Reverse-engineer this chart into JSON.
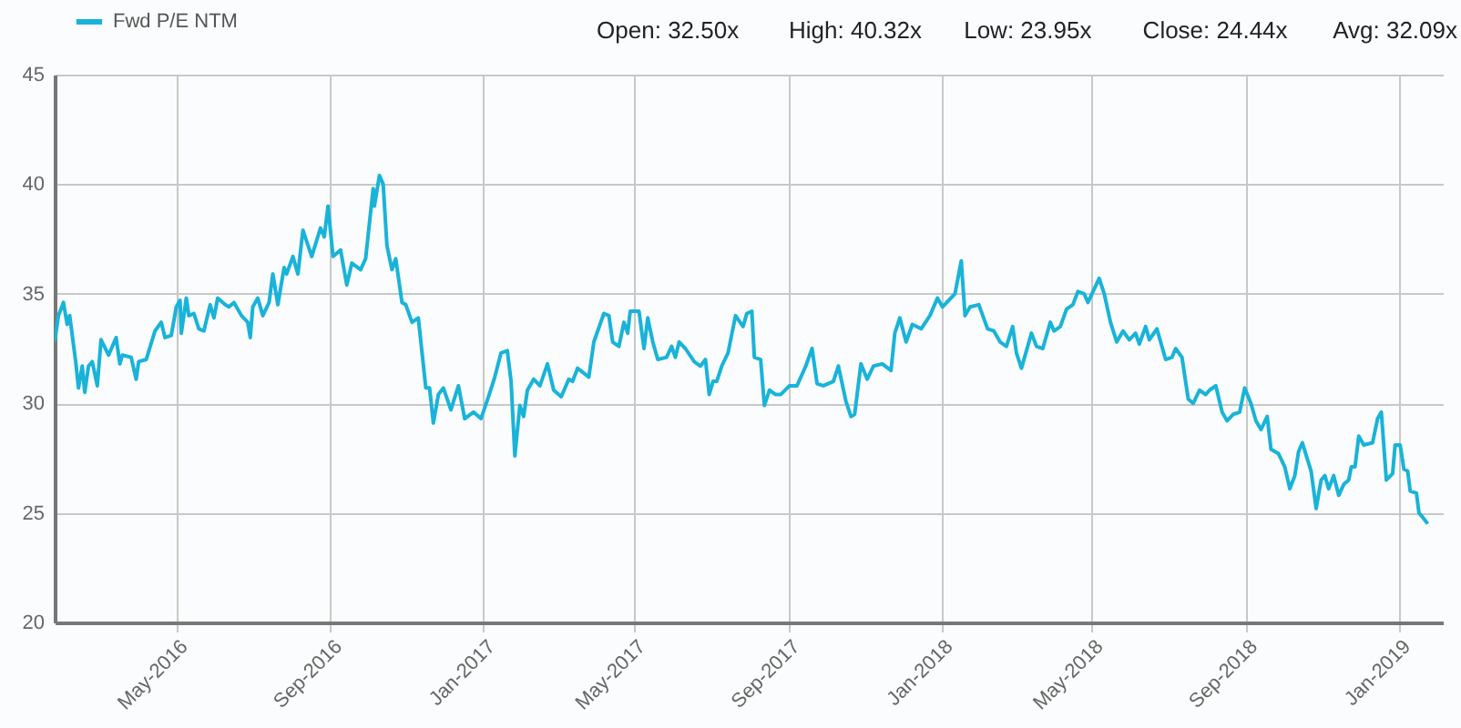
{
  "chart_data": {
    "type": "line",
    "legend": "top left",
    "grid": true,
    "marker": "none",
    "line_style": "solid",
    "annotations": [
      "Open: 32.50x",
      "High: 40.32x",
      "Low: 23.95x",
      "Close: 24.44x",
      "Avg: 32.09x"
    ],
    "xlim": [
      "2016-01-25",
      "2019-02-05"
    ],
    "ylim": [
      20,
      45
    ],
    "yticks": [
      20,
      25,
      30,
      35,
      40,
      45
    ],
    "xticks": [
      {
        "value": "2016-05-01",
        "label": "May-2016"
      },
      {
        "value": "2016-09-01",
        "label": "Sep-2016"
      },
      {
        "value": "2017-01-01",
        "label": "Jan-2017"
      },
      {
        "value": "2017-05-01",
        "label": "May-2017"
      },
      {
        "value": "2017-09-01",
        "label": "Sep-2017"
      },
      {
        "value": "2018-01-01",
        "label": "Jan-2018"
      },
      {
        "value": "2018-05-01",
        "label": "May-2018"
      },
      {
        "value": "2018-09-01",
        "label": "Sep-2018"
      },
      {
        "value": "2019-01-01",
        "label": "Jan-2019"
      }
    ],
    "x": [
      "2016-01-25",
      "2016-01-28",
      "2016-02-01",
      "2016-02-04",
      "2016-02-06",
      "2016-02-11",
      "2016-02-13",
      "2016-02-16",
      "2016-02-18",
      "2016-02-21",
      "2016-02-24",
      "2016-02-28",
      "2016-03-02",
      "2016-03-08",
      "2016-03-14",
      "2016-03-17",
      "2016-03-19",
      "2016-03-26",
      "2016-03-30",
      "2016-04-01",
      "2016-04-07",
      "2016-04-14",
      "2016-04-19",
      "2016-04-22",
      "2016-04-27",
      "2016-05-01",
      "2016-05-04",
      "2016-05-05",
      "2016-05-09",
      "2016-05-11",
      "2016-05-15",
      "2016-05-19",
      "2016-05-23",
      "2016-05-28",
      "2016-05-31",
      "2016-06-03",
      "2016-06-09",
      "2016-06-12",
      "2016-06-16",
      "2016-06-22",
      "2016-06-27",
      "2016-06-29",
      "2016-07-01",
      "2016-07-05",
      "2016-07-09",
      "2016-07-14",
      "2016-07-17",
      "2016-07-21",
      "2016-07-26",
      "2016-07-28",
      "2016-08-02",
      "2016-08-06",
      "2016-08-10",
      "2016-08-17",
      "2016-08-24",
      "2016-08-27",
      "2016-08-30",
      "2016-09-03",
      "2016-09-09",
      "2016-09-14",
      "2016-09-18",
      "2016-09-25",
      "2016-09-29",
      "2016-10-05",
      "2016-10-06",
      "2016-10-10",
      "2016-10-13",
      "2016-10-16",
      "2016-10-20",
      "2016-10-23",
      "2016-10-28",
      "2016-10-31",
      "2016-11-05",
      "2016-11-10",
      "2016-11-16",
      "2016-11-19",
      "2016-11-22",
      "2016-11-26",
      "2016-11-30",
      "2016-12-06",
      "2016-12-12",
      "2016-12-17",
      "2016-12-24",
      "2016-12-30",
      "2017-01-05",
      "2017-01-10",
      "2017-01-15",
      "2017-01-20",
      "2017-01-23",
      "2017-01-26",
      "2017-01-30",
      "2017-02-02",
      "2017-02-05",
      "2017-02-10",
      "2017-02-15",
      "2017-02-21",
      "2017-02-26",
      "2017-03-04",
      "2017-03-10",
      "2017-03-13",
      "2017-03-17",
      "2017-03-26",
      "2017-03-30",
      "2017-04-07",
      "2017-04-11",
      "2017-04-14",
      "2017-04-19",
      "2017-04-23",
      "2017-04-26",
      "2017-04-28",
      "2017-05-05",
      "2017-05-09",
      "2017-05-12",
      "2017-05-16",
      "2017-05-20",
      "2017-05-27",
      "2017-05-31",
      "2017-06-03",
      "2017-06-06",
      "2017-06-11",
      "2017-06-18",
      "2017-06-23",
      "2017-06-27",
      "2017-06-30",
      "2017-07-03",
      "2017-07-06",
      "2017-07-10",
      "2017-07-15",
      "2017-07-21",
      "2017-07-27",
      "2017-07-30",
      "2017-08-03",
      "2017-08-05",
      "2017-08-10",
      "2017-08-13",
      "2017-08-17",
      "2017-08-22",
      "2017-08-26",
      "2017-09-02",
      "2017-09-08",
      "2017-09-15",
      "2017-09-20",
      "2017-09-24",
      "2017-09-29",
      "2017-10-07",
      "2017-10-11",
      "2017-10-17",
      "2017-10-21",
      "2017-10-24",
      "2017-10-29",
      "2017-11-03",
      "2017-11-08",
      "2017-11-15",
      "2017-11-22",
      "2017-11-25",
      "2017-11-29",
      "2017-12-04",
      "2017-12-09",
      "2017-12-16",
      "2017-12-23",
      "2017-12-29",
      "2018-01-02",
      "2018-01-12",
      "2018-01-17",
      "2018-01-20",
      "2018-01-24",
      "2018-01-31",
      "2018-02-07",
      "2018-02-12",
      "2018-02-17",
      "2018-02-22",
      "2018-02-27",
      "2018-03-02",
      "2018-03-06",
      "2018-03-10",
      "2018-03-14",
      "2018-03-18",
      "2018-03-23",
      "2018-03-29",
      "2018-04-01",
      "2018-04-06",
      "2018-04-11",
      "2018-04-16",
      "2018-04-20",
      "2018-04-25",
      "2018-04-28",
      "2018-05-07",
      "2018-05-11",
      "2018-05-16",
      "2018-05-21",
      "2018-05-26",
      "2018-05-31",
      "2018-06-05",
      "2018-06-08",
      "2018-06-13",
      "2018-06-16",
      "2018-06-22",
      "2018-06-29",
      "2018-07-04",
      "2018-07-07",
      "2018-07-12",
      "2018-07-17",
      "2018-07-21",
      "2018-07-26",
      "2018-07-31",
      "2018-08-03",
      "2018-08-08",
      "2018-08-13",
      "2018-08-17",
      "2018-08-22",
      "2018-08-27",
      "2018-08-31",
      "2018-09-05",
      "2018-09-09",
      "2018-09-13",
      "2018-09-18",
      "2018-09-21",
      "2018-09-27",
      "2018-10-02",
      "2018-10-06",
      "2018-10-10",
      "2018-10-13",
      "2018-10-16",
      "2018-10-23",
      "2018-10-27",
      "2018-10-31",
      "2018-11-03",
      "2018-11-06",
      "2018-11-10",
      "2018-11-14",
      "2018-11-18",
      "2018-11-22",
      "2018-11-24",
      "2018-11-27",
      "2018-11-30",
      "2018-12-04",
      "2018-12-11",
      "2018-12-15",
      "2018-12-18",
      "2018-12-22",
      "2018-12-27",
      "2018-12-29",
      "2019-01-02",
      "2019-01-05",
      "2019-01-08",
      "2019-01-10",
      "2019-01-15",
      "2019-01-17",
      "2019-01-20",
      "2019-01-24"
    ],
    "series": [
      {
        "name": "Fwd P/E NTM",
        "color": "#19b3d9",
        "values": [
          32.8,
          34.0,
          34.6,
          33.6,
          34.0,
          31.8,
          30.7,
          31.7,
          30.5,
          31.7,
          31.9,
          30.8,
          32.9,
          32.2,
          33.0,
          31.8,
          32.2,
          32.1,
          31.1,
          31.9,
          32.0,
          33.3,
          33.7,
          33.0,
          33.1,
          34.4,
          34.7,
          33.2,
          34.8,
          34.0,
          34.1,
          33.4,
          33.3,
          34.5,
          33.9,
          34.8,
          34.5,
          34.4,
          34.6,
          34.0,
          33.7,
          33.0,
          34.4,
          34.8,
          34.0,
          34.6,
          35.9,
          34.5,
          36.2,
          35.9,
          36.7,
          35.9,
          37.9,
          36.7,
          38.0,
          37.6,
          39.0,
          36.7,
          37.0,
          35.4,
          36.4,
          36.1,
          36.6,
          39.8,
          39.0,
          40.4,
          40.0,
          37.2,
          36.1,
          36.6,
          34.6,
          34.5,
          33.7,
          33.9,
          30.7,
          30.7,
          29.1,
          30.4,
          30.7,
          29.7,
          30.8,
          29.3,
          29.6,
          29.3,
          30.3,
          31.2,
          32.3,
          32.4,
          31.0,
          27.6,
          29.9,
          29.4,
          30.6,
          31.1,
          30.8,
          31.8,
          30.6,
          30.3,
          31.1,
          31.0,
          31.6,
          31.2,
          32.8,
          34.1,
          34.0,
          32.8,
          32.6,
          33.7,
          33.2,
          34.2,
          34.2,
          32.5,
          33.9,
          32.8,
          32.0,
          32.1,
          32.6,
          32.1,
          32.8,
          32.5,
          31.9,
          31.7,
          32.0,
          30.4,
          31.0,
          31.0,
          31.7,
          32.3,
          34.0,
          33.5,
          34.1,
          34.2,
          32.1,
          32.0,
          29.9,
          30.6,
          30.4,
          30.4,
          30.8,
          30.8,
          31.7,
          32.5,
          30.9,
          30.8,
          31.0,
          31.7,
          30.1,
          29.4,
          29.5,
          31.8,
          31.1,
          31.7,
          31.8,
          31.5,
          33.2,
          33.9,
          32.8,
          33.6,
          33.4,
          34.0,
          34.8,
          34.4,
          35.0,
          36.5,
          34.0,
          34.4,
          34.5,
          33.4,
          33.3,
          32.8,
          32.6,
          33.5,
          32.3,
          31.6,
          32.4,
          33.2,
          32.6,
          32.5,
          33.7,
          33.3,
          33.5,
          34.3,
          34.5,
          35.1,
          35.0,
          34.6,
          35.7,
          35.0,
          33.7,
          32.8,
          33.3,
          32.9,
          33.2,
          32.7,
          33.5,
          32.9,
          33.4,
          32.0,
          32.1,
          32.5,
          32.1,
          30.2,
          30.0,
          30.6,
          30.4,
          30.6,
          30.8,
          29.6,
          29.2,
          29.5,
          29.6,
          30.7,
          30.0,
          29.2,
          28.8,
          29.4,
          27.9,
          27.7,
          27.1,
          26.1,
          26.7,
          27.8,
          28.2,
          26.9,
          25.2,
          26.5,
          26.7,
          26.1,
          26.7,
          25.8,
          26.3,
          26.5,
          27.1,
          27.1,
          28.5,
          28.1,
          28.2,
          29.3,
          29.6,
          26.5,
          26.8,
          28.1,
          28.1,
          27.0,
          26.9,
          26.0,
          25.9,
          25.0,
          24.8,
          24.5
        ]
      }
    ]
  }
}
